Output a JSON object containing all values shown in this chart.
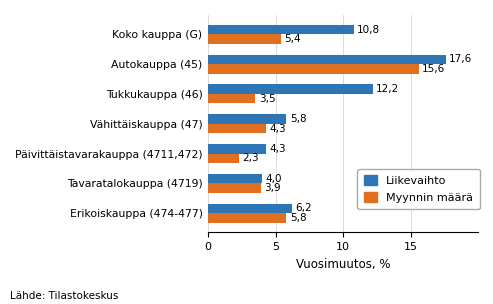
{
  "categories": [
    "Erikoiskauppa (474-477)",
    "Tavaratalokauppa (4719)",
    "Päivittäistavarakauppa (4711,472)",
    "Vähittäiskauppa (47)",
    "Tukkukauppa (46)",
    "Autokauppa (45)",
    "Koko kauppa (G)"
  ],
  "liikevaihto": [
    6.2,
    4.0,
    4.3,
    5.8,
    12.2,
    17.6,
    10.8
  ],
  "myynnin_maara": [
    5.8,
    3.9,
    2.3,
    4.3,
    3.5,
    15.6,
    5.4
  ],
  "color_liikevaihto": "#2E75B6",
  "color_myynnin": "#E07020",
  "xlabel": "Vuosimuutos, %",
  "legend_liikevaihto": "Liikevaihto",
  "legend_myynnin": "Myynnin määrä",
  "footnote": "Lähde: Tilastokeskus",
  "xlim": [
    0,
    20
  ],
  "xticks": [
    0,
    5,
    10,
    15
  ]
}
